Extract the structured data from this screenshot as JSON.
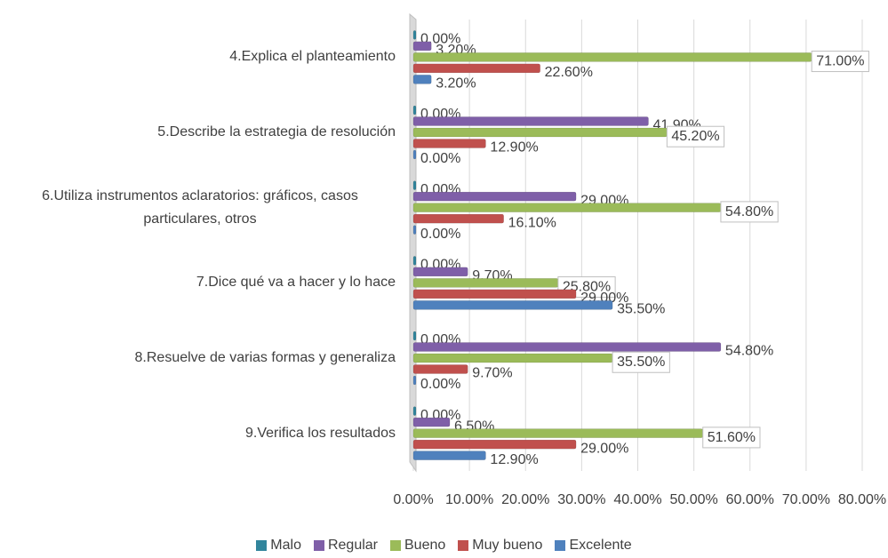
{
  "chart_data": {
    "type": "bar",
    "orientation": "horizontal",
    "categories": [
      "4.Explica el planteamiento",
      "5.Describe la estrategia de resolución",
      "6.Utiliza instrumentos aclaratorios: gráficos, casos particulares, otros",
      "7.Dice qué va a hacer y lo hace",
      "8.Resuelve de varias formas y generaliza",
      "9.Verifica los resultados"
    ],
    "series": [
      {
        "name": "Malo",
        "color": "#31859c",
        "values": [
          0,
          0,
          0,
          0,
          0,
          0
        ],
        "value_labels": [
          "0.00%",
          "0.00%",
          "0.00%",
          "0.00%",
          "0.00%",
          "0.00%"
        ]
      },
      {
        "name": "Regular",
        "color": "#7f5fa8",
        "values": [
          3.2,
          41.9,
          29,
          9.7,
          54.8,
          6.5
        ],
        "value_labels": [
          "3.20%",
          "41.90%",
          "29.00%",
          "9.70%",
          "54.80%",
          "6.50%"
        ]
      },
      {
        "name": "Bueno",
        "color": "#9bbb59",
        "values": [
          71,
          45.2,
          54.8,
          25.8,
          35.5,
          51.6
        ],
        "value_labels": [
          "71.00%",
          "45.20%",
          "54.80%",
          "25.80%",
          "35.50%",
          "51.60%"
        ]
      },
      {
        "name": "Muy bueno",
        "color": "#c0504d",
        "values": [
          22.6,
          12.9,
          16.1,
          29,
          9.7,
          29
        ],
        "value_labels": [
          "22.60%",
          "12.90%",
          "16.10%",
          "29.00%",
          "9.70%",
          "29.00%"
        ]
      },
      {
        "name": "Excelente",
        "color": "#4f81bd",
        "values": [
          3.2,
          0,
          0,
          35.5,
          0,
          12.9
        ],
        "value_labels": [
          "3.20%",
          "0.00%",
          "0.00%",
          "35.50%",
          "0.00%",
          "12.90%"
        ]
      }
    ],
    "xlim": [
      0,
      80
    ],
    "xticks": [
      {
        "value": 0,
        "label": "0.00%"
      },
      {
        "value": 10,
        "label": "10.00%"
      },
      {
        "value": 20,
        "label": "20.00%"
      },
      {
        "value": 30,
        "label": "30.00%"
      },
      {
        "value": 40,
        "label": "40.00%"
      },
      {
        "value": 50,
        "label": "50.00%"
      },
      {
        "value": 60,
        "label": "60.00%"
      },
      {
        "value": 70,
        "label": "70.00%"
      },
      {
        "value": 80,
        "label": "80.00%"
      }
    ],
    "grid": true,
    "legend": "bottom"
  }
}
